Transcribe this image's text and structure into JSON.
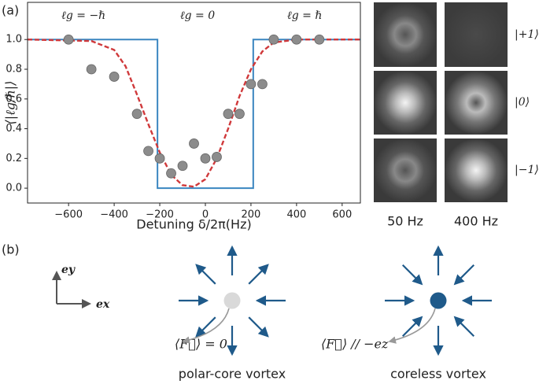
{
  "chart_data": {
    "type": "scatter",
    "xlabel": "Detuning δ/2π(Hz)",
    "ylabel": "⟨|ℓg/ℏ|⟩",
    "annotations": [
      "ℓg = −ℏ",
      "ℓg = 0",
      "ℓg = ℏ"
    ],
    "xlim": [
      -780,
      680
    ],
    "ylim": [
      -0.1,
      1.25
    ],
    "xticks": [
      -600,
      -400,
      -200,
      0,
      200,
      400,
      600
    ],
    "yticks": [
      {
        "value": 0,
        "label": "0.0"
      },
      0.2,
      0.4,
      0.6,
      0.8,
      {
        "value": 1,
        "label": "1.0"
      }
    ],
    "points": {
      "color": "#8c8c8c",
      "x": [
        -600,
        -500,
        -400,
        -300,
        -250,
        -200,
        -150,
        -100,
        -50,
        0,
        50,
        100,
        150,
        200,
        250,
        300,
        400,
        500
      ],
      "values": [
        1,
        0.8,
        0.75,
        0.5,
        0.25,
        0.2,
        0.1,
        0.15,
        0.3,
        0.2,
        0.21,
        0.5,
        0.5,
        0.7,
        0.7,
        1,
        1,
        1
      ]
    },
    "step": {
      "color": "#3a86c0",
      "x": [
        -780,
        -210,
        -210,
        210,
        210,
        680
      ],
      "values": [
        1,
        1,
        0,
        0,
        1,
        1
      ]
    },
    "fit": {
      "color": "#d0393b",
      "x": [
        -780,
        -500,
        -400,
        -350,
        -300,
        -250,
        -200,
        -150,
        -100,
        -50,
        0,
        50,
        100,
        150,
        200,
        250,
        300,
        400,
        680
      ],
      "values": [
        1,
        0.99,
        0.93,
        0.82,
        0.63,
        0.43,
        0.24,
        0.09,
        0.02,
        0.01,
        0.06,
        0.2,
        0.4,
        0.62,
        0.8,
        0.92,
        0.98,
        1,
        1
      ]
    }
  },
  "panels": [
    "(a)",
    "(b)"
  ],
  "images": {
    "rows": [
      "|+1⟩",
      "|0⟩",
      "|−1⟩"
    ],
    "columns": [
      "50 Hz",
      "400 Hz"
    ]
  },
  "frame": {
    "y": "ey",
    "x": "ex"
  },
  "vortices": [
    {
      "spin": "⟨F⃗⟩ = 0",
      "name": "polar-core vortex"
    },
    {
      "spin": "⟨F⃗⟩ // −ez",
      "name": "coreless vortex"
    }
  ]
}
